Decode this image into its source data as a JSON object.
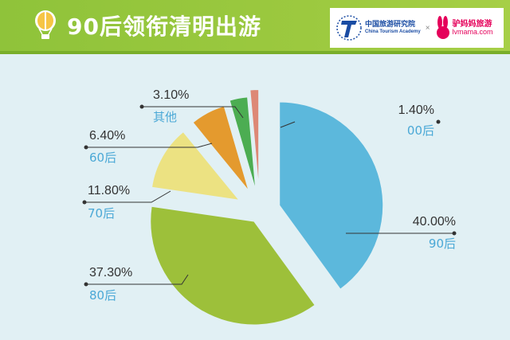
{
  "header": {
    "title": "90后领衔清明出游",
    "logo1_cn": "中国旅游研究院",
    "logo1_en": "China Tourism Academy",
    "cross": "×",
    "logo2_cn": "驴妈妈旅游",
    "logo2_en": "lvmama.com"
  },
  "colors": {
    "background": "#e1f0f4",
    "header": "#9cc93f"
  },
  "chart_data": {
    "type": "pie",
    "title": "90后领衔清明出游",
    "slices": [
      {
        "label": "90后",
        "value": 40.0,
        "percent_label": "40.00%",
        "color": "#5cb8dc"
      },
      {
        "label": "80后",
        "value": 37.3,
        "percent_label": "37.30%",
        "color": "#9dc03a"
      },
      {
        "label": "70后",
        "value": 11.8,
        "percent_label": "11.80%",
        "color": "#ece282"
      },
      {
        "label": "60后",
        "value": 6.4,
        "percent_label": "6.40%",
        "color": "#e49a2e"
      },
      {
        "label": "其他",
        "value": 3.1,
        "percent_label": "3.10%",
        "color": "#4cad52"
      },
      {
        "label": "00后",
        "value": 1.4,
        "percent_label": "1.40%",
        "color": "#dd8876"
      }
    ]
  }
}
